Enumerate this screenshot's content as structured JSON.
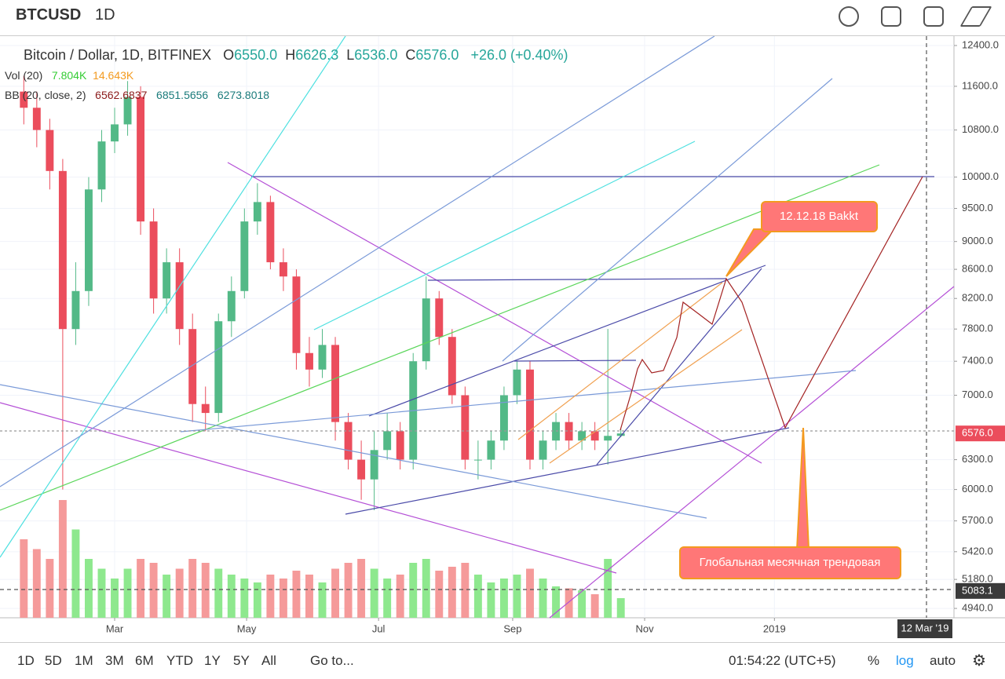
{
  "toolbar": {
    "symbol": "BTCUSD",
    "interval": "1D"
  },
  "legend": {
    "title": "Bitcoin / Dollar, 1D, BITFINEX",
    "o_label": "O",
    "open": "6550.0",
    "h_label": "H",
    "high": "6626.3",
    "l_label": "L",
    "low": "6536.0",
    "c_label": "C",
    "close": "6576.0",
    "change": "+26.0 (+0.40%)",
    "vol_name": "Vol (20)",
    "vol_value": "7.804K",
    "vol_ma": "14.643K",
    "bb_name": "BB (20, close, 2)",
    "bb_mid": "6562.6837",
    "bb_upper": "6851.5656",
    "bb_lower": "6273.8018"
  },
  "bottom_bar": {
    "ranges": [
      "1D",
      "5D",
      "1M",
      "3M",
      "6M",
      "YTD",
      "1Y",
      "5Y",
      "All"
    ],
    "goto": "Go to...",
    "clock": "01:54:22 (UTC+5)",
    "percent": "%",
    "log": "log",
    "auto": "auto"
  },
  "chart_data": {
    "type": "candlestick",
    "log": true,
    "colors": {
      "up": "#53b987",
      "down": "#eb4d5c",
      "volume_up": "#8ee88e",
      "volume_down": "#f59a9a"
    },
    "x": [
      18,
      24,
      30,
      36,
      42,
      48,
      54,
      60,
      66,
      72,
      78,
      84,
      90,
      96,
      102,
      108,
      114,
      120,
      126,
      132,
      138,
      144,
      150,
      156,
      162,
      168,
      174,
      180,
      186,
      192,
      198,
      204,
      210,
      216,
      222,
      228,
      234,
      240,
      246,
      252,
      258,
      264,
      270,
      276,
      282,
      288,
      294
    ],
    "open": [
      11500,
      11200,
      10800,
      10100,
      7800,
      8300,
      9800,
      10600,
      10900,
      11400,
      9300,
      8200,
      8700,
      7800,
      6900,
      6800,
      7900,
      8300,
      9300,
      9600,
      8700,
      8500,
      7500,
      7300,
      7600,
      6700,
      6300,
      6100,
      6400,
      6600,
      6300,
      7400,
      8200,
      7700,
      7000,
      6300,
      6300,
      6500,
      7000,
      7300,
      6300,
      6500,
      6700,
      6500,
      6600,
      6500,
      6550
    ],
    "high": [
      11800,
      11500,
      11000,
      10300,
      8700,
      10000,
      10800,
      11200,
      11700,
      11600,
      9500,
      8900,
      8900,
      8000,
      7100,
      8000,
      8500,
      9500,
      9900,
      9700,
      8900,
      8600,
      7700,
      7800,
      7700,
      6800,
      6500,
      6600,
      6800,
      6700,
      7500,
      8500,
      8300,
      7800,
      7100,
      6500,
      6600,
      7100,
      7400,
      7400,
      6600,
      6800,
      6800,
      6700,
      6700,
      7800,
      6626.3
    ],
    "low": [
      10900,
      10500,
      9800,
      6000,
      7600,
      8100,
      9600,
      10400,
      10700,
      9100,
      8000,
      8000,
      7600,
      6700,
      6600,
      6700,
      7700,
      8200,
      9100,
      8600,
      8300,
      7300,
      7100,
      7200,
      6500,
      6200,
      5900,
      5800,
      6300,
      6200,
      6200,
      7300,
      7600,
      6900,
      6200,
      6100,
      6200,
      6400,
      6900,
      6200,
      6200,
      6400,
      6400,
      6400,
      6400,
      6250,
      6536
    ],
    "close": [
      11200,
      10800,
      10100,
      7800,
      8300,
      9800,
      10600,
      10900,
      11400,
      9300,
      8200,
      8700,
      7800,
      6900,
      6800,
      7900,
      8300,
      9300,
      9600,
      8700,
      8500,
      7500,
      7300,
      7600,
      6700,
      6300,
      6100,
      6400,
      6600,
      6300,
      7400,
      8200,
      7700,
      7000,
      6300,
      6300,
      6500,
      7000,
      7300,
      6300,
      6500,
      6700,
      6500,
      6600,
      6500,
      6550,
      6576
    ],
    "volume": [
      40,
      35,
      30,
      60,
      45,
      30,
      25,
      20,
      25,
      30,
      28,
      22,
      25,
      30,
      28,
      25,
      22,
      20,
      18,
      22,
      20,
      24,
      22,
      18,
      25,
      28,
      30,
      25,
      20,
      22,
      28,
      30,
      24,
      26,
      28,
      22,
      18,
      20,
      22,
      25,
      20,
      16,
      15,
      14,
      12,
      30,
      10
    ],
    "xlim": [
      7,
      448
    ],
    "ylim": [
      4865,
      12592
    ],
    "xticks": [
      {
        "value": 60,
        "label": "Mar"
      },
      {
        "value": 121,
        "label": "May"
      },
      {
        "value": 182,
        "label": "Jul"
      },
      {
        "value": 244,
        "label": "Sep"
      },
      {
        "value": 305,
        "label": "Nov"
      },
      {
        "value": 365,
        "label": "2019"
      }
    ],
    "yticks": [
      {
        "value": 12400,
        "label": "12400.0"
      },
      {
        "value": 11600,
        "label": "11600.0"
      },
      {
        "value": 10800,
        "label": "10800.0"
      },
      {
        "value": 10000,
        "label": "10000.0"
      },
      {
        "value": 9500,
        "label": "9500.0"
      },
      {
        "value": 9000,
        "label": "9000.0"
      },
      {
        "value": 8600,
        "label": "8600.0"
      },
      {
        "value": 8200,
        "label": "8200.0"
      },
      {
        "value": 7800,
        "label": "7800.0"
      },
      {
        "value": 7400,
        "label": "7400.0"
      },
      {
        "value": 7000,
        "label": "7000.0"
      },
      {
        "value": 6300,
        "label": "6300.0"
      },
      {
        "value": 6000,
        "label": "6000.0"
      },
      {
        "value": 5700,
        "label": "5700.0"
      },
      {
        "value": 5420,
        "label": "5420.0"
      },
      {
        "value": 5180,
        "label": "5180.0"
      },
      {
        "value": 4940,
        "label": "4940.0"
      }
    ],
    "price_labels": [
      {
        "value": 6576,
        "label": "6576.0"
      },
      {
        "value": 5083.1,
        "label": "5083.1"
      }
    ],
    "crosshair_label": "12 Mar '19",
    "annotations": [
      "12.12.18  Bakkt",
      "Глобальная месячная трендовая"
    ]
  }
}
